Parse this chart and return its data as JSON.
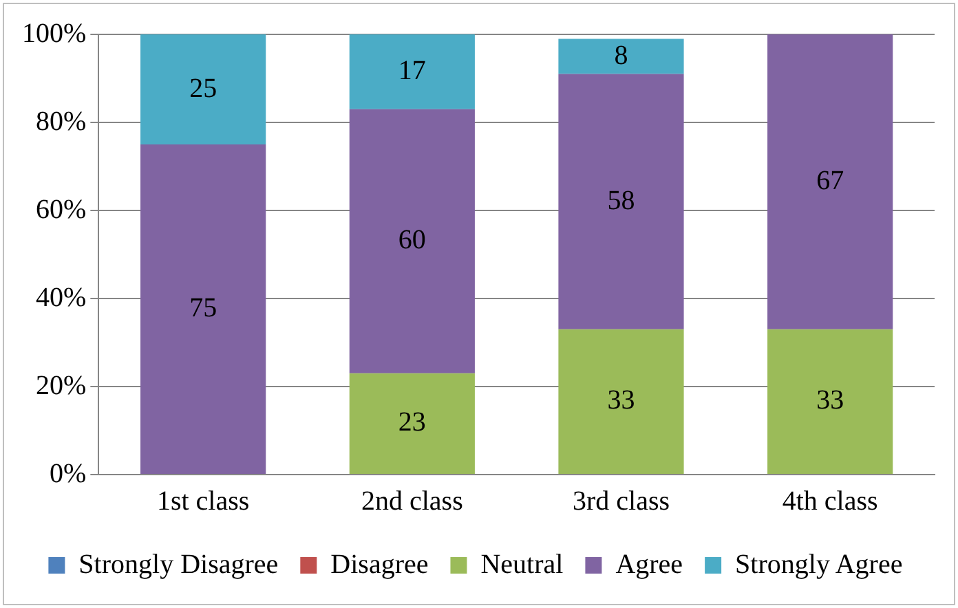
{
  "chart_data": {
    "type": "bar",
    "stacked": true,
    "categories": [
      "1st class",
      "2nd class",
      "3rd class",
      "4th class"
    ],
    "series": [
      {
        "name": "Strongly Disagree",
        "color": "#4f81bd",
        "values": [
          0,
          0,
          0,
          0
        ],
        "value_labels": [
          null,
          null,
          null,
          null
        ]
      },
      {
        "name": "Disagree",
        "color": "#c0504d",
        "values": [
          0,
          0,
          0,
          0
        ],
        "value_labels": [
          null,
          null,
          null,
          null
        ]
      },
      {
        "name": "Neutral",
        "color": "#9bbb59",
        "values": [
          0,
          23,
          33,
          33
        ],
        "value_labels": [
          null,
          "23",
          "33",
          "33"
        ]
      },
      {
        "name": "Agree",
        "color": "#8064a2",
        "values": [
          75,
          60,
          58,
          67
        ],
        "value_labels": [
          "75",
          "60",
          "58",
          "67"
        ]
      },
      {
        "name": "Strongly Agree",
        "color": "#4bacc6",
        "values": [
          25,
          17,
          8,
          0
        ],
        "value_labels": [
          "25",
          "17",
          "8",
          null
        ]
      }
    ],
    "ylim": [
      0,
      100
    ],
    "yticks": [
      {
        "value": 0,
        "label": "0%"
      },
      {
        "value": 20,
        "label": "20%"
      },
      {
        "value": 40,
        "label": "40%"
      },
      {
        "value": 60,
        "label": "60%"
      },
      {
        "value": 80,
        "label": "80%"
      },
      {
        "value": 100,
        "label": "100%"
      }
    ],
    "grid": "y",
    "legend": "bottom"
  }
}
